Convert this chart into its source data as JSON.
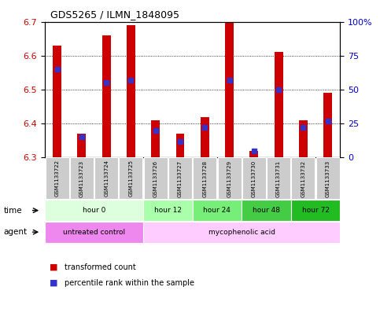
{
  "title": "GDS5265 / ILMN_1848095",
  "samples": [
    "GSM1133722",
    "GSM1133723",
    "GSM1133724",
    "GSM1133725",
    "GSM1133726",
    "GSM1133727",
    "GSM1133728",
    "GSM1133729",
    "GSM1133730",
    "GSM1133731",
    "GSM1133732",
    "GSM1133733"
  ],
  "transformed_count": [
    6.63,
    6.37,
    6.66,
    6.69,
    6.41,
    6.37,
    6.42,
    6.7,
    6.32,
    6.61,
    6.41,
    6.49
  ],
  "percentile_rank": [
    65,
    15,
    55,
    57,
    20,
    12,
    22,
    57,
    5,
    50,
    22,
    27
  ],
  "ylim_left": [
    6.3,
    6.7
  ],
  "ylim_right": [
    0,
    100
  ],
  "yticks_left": [
    6.3,
    6.4,
    6.5,
    6.6,
    6.7
  ],
  "yticks_right": [
    0,
    25,
    50,
    75,
    100
  ],
  "ytick_labels_right": [
    "0",
    "25",
    "50",
    "75",
    "100%"
  ],
  "bar_color": "#cc0000",
  "dot_color": "#3333cc",
  "bar_bottom": 6.3,
  "time_groups": [
    {
      "label": "hour 0",
      "start": 0,
      "end": 4,
      "color": "#ddffdd"
    },
    {
      "label": "hour 12",
      "start": 4,
      "end": 6,
      "color": "#aaffaa"
    },
    {
      "label": "hour 24",
      "start": 6,
      "end": 8,
      "color": "#77ee77"
    },
    {
      "label": "hour 48",
      "start": 8,
      "end": 10,
      "color": "#44cc44"
    },
    {
      "label": "hour 72",
      "start": 10,
      "end": 12,
      "color": "#22bb22"
    }
  ],
  "agent_groups": [
    {
      "label": "untreated control",
      "start": 0,
      "end": 4,
      "color": "#ee88ee"
    },
    {
      "label": "mycophenolic acid",
      "start": 4,
      "end": 12,
      "color": "#ffccff"
    }
  ],
  "bg_color": "#ffffff",
  "ylabel_left_color": "#cc0000",
  "ylabel_right_color": "#0000cc",
  "title_color": "#000000",
  "sample_bg_color": "#cccccc",
  "bar_width": 0.35,
  "dot_size": 4
}
